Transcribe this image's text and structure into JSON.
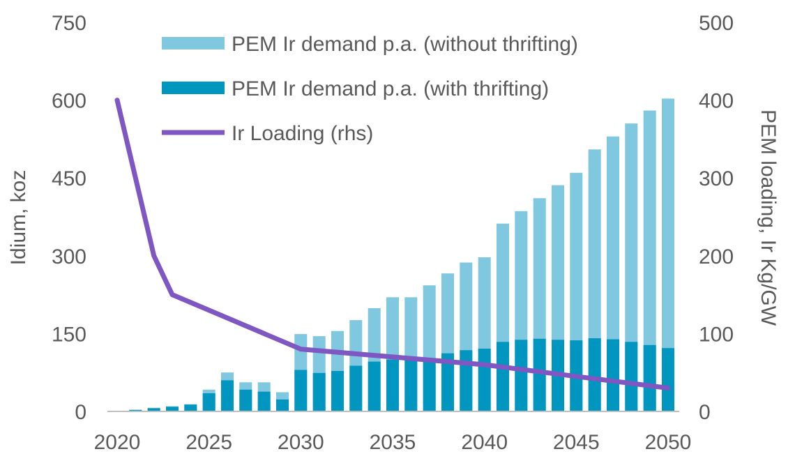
{
  "chart_data": {
    "type": "bar",
    "title": "",
    "stacked": true,
    "x": [
      2020,
      2021,
      2022,
      2023,
      2024,
      2025,
      2026,
      2027,
      2028,
      2029,
      2030,
      2031,
      2032,
      2033,
      2034,
      2035,
      2036,
      2037,
      2038,
      2039,
      2040,
      2041,
      2042,
      2043,
      2044,
      2045,
      2046,
      2047,
      2048,
      2049,
      2050
    ],
    "x_ticks": [
      2020,
      2025,
      2030,
      2035,
      2040,
      2045,
      2050
    ],
    "ylabel": "Idium, koz",
    "ylim": [
      0,
      750
    ],
    "y_ticks": [
      0,
      150,
      300,
      450,
      600,
      750
    ],
    "y2label": "PEM loading, Ir Kg/GW",
    "y2lim": [
      0,
      500
    ],
    "y2_ticks": [
      0,
      100,
      200,
      300,
      400,
      500
    ],
    "legend_position": "top",
    "series": [
      {
        "name": "PEM Ir demand p.a. (without thrifting)",
        "kind": "bar",
        "axis": "left",
        "color": "#7fc8df",
        "values": [
          0,
          3,
          7,
          10,
          14,
          42,
          75,
          56,
          56,
          37,
          149,
          145,
          155,
          176,
          199,
          220,
          220,
          243,
          266,
          287,
          297,
          362,
          386,
          411,
          436,
          460,
          505,
          530,
          555,
          580,
          603
        ]
      },
      {
        "name": "PEM Ir demand p.a. (with thrifting)",
        "kind": "bar",
        "axis": "left",
        "color": "#0096c0",
        "values": [
          0,
          3,
          6,
          9,
          13,
          35,
          60,
          42,
          38,
          23,
          80,
          74,
          78,
          88,
          96,
          100,
          101,
          103,
          112,
          118,
          121,
          134,
          138,
          140,
          138,
          137,
          141,
          139,
          134,
          128,
          122
        ]
      },
      {
        "name": "Ir Loading (rhs)",
        "kind": "line",
        "axis": "right",
        "color": "#7e57c2",
        "x": [
          2020,
          2022,
          2023,
          2025,
          2028,
          2030,
          2035,
          2040,
          2045,
          2050
        ],
        "values": [
          400,
          200,
          150,
          130,
          100,
          80,
          70,
          60,
          45,
          30
        ]
      }
    ]
  }
}
